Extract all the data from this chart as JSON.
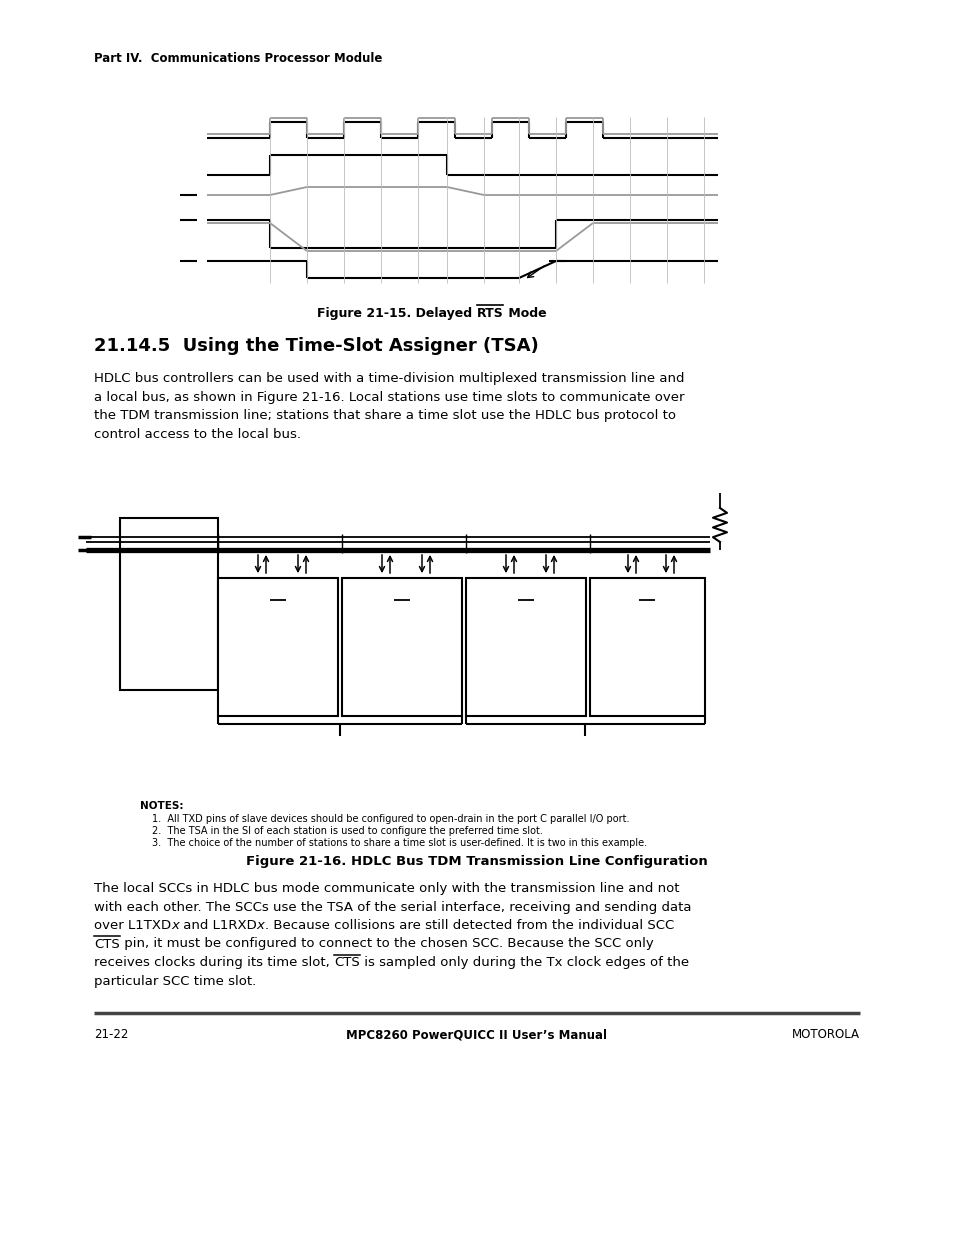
{
  "page_bg": "#ffffff",
  "header_text": "Part IV.  Communications Processor Module",
  "fig1_caption_pre": "Figure 21-15. Delayed ",
  "fig1_caption_rts": "RTS",
  "fig1_caption_post": " Mode",
  "section_title": "21.14.5  Using the Time-Slot Assigner (TSA)",
  "body_text1_lines": [
    "HDLC bus controllers can be used with a time-division multiplexed transmission line and",
    "a local bus, as shown in Figure 21-16. Local stations use time slots to communicate over",
    "the TDM transmission line; stations that share a time slot use the HDLC bus protocol to",
    "control access to the local bus."
  ],
  "fig2_caption": "Figure 21-16. HDLC Bus TDM Transmission Line Configuration",
  "notes_title": "NOTES:",
  "note1": "1.  All TXD pins of slave devices should be configured to open-drain in the port C parallel I/O port.",
  "note2": "2.  The TSA in the SI of each station is used to configure the preferred time slot.",
  "note3": "3.  The choice of the number of stations to share a time slot is user-defined. It is two in this example.",
  "body_text2_lines": [
    "The local SCCs in HDLC bus mode communicate only with the transmission line and not",
    "with each other. The SCCs use the TSA of the serial interface, receiving and sending data"
  ],
  "body_line3_normal1": "over L1TXD",
  "body_line3_italic1": "x",
  "body_line3_normal2": " and L1RXD",
  "body_line3_italic2": "x",
  "body_line3_normal3": ". Because collisions are still detected from the individual SCC",
  "body_line4_cts": "CTS",
  "body_line4_rest": " pin, it must be configured to connect to the chosen SCC. Because the SCC only",
  "body_line5_pre": "receives clocks during its time slot, ",
  "body_line5_cts": "CTS",
  "body_line5_post": " is sampled only during the Tx clock edges of the",
  "body_line6": "particular SCC time slot.",
  "footer_left": "21-22",
  "footer_center": "MPC8260 PowerQUICC II User’s Manual",
  "footer_right": "MOTOROLA"
}
